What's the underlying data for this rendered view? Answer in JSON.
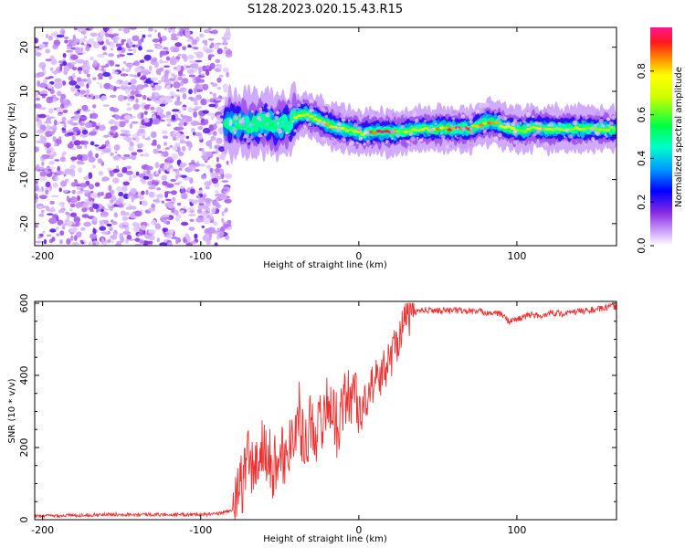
{
  "title": "S128.2023.020.15.43.R15",
  "chart_data": [
    {
      "type": "heatmap",
      "xlabel": "Height of straight line (km)",
      "ylabel": "Frequency (Hz)",
      "xlim": [
        -205,
        163
      ],
      "ylim": [
        -25,
        24.5
      ],
      "xticks": [
        -200,
        -100,
        0,
        100
      ],
      "yticks": [
        20,
        10,
        0,
        -10,
        -20
      ],
      "noise_region_x": [
        -205,
        -85
      ],
      "signal_ridge": {
        "x": [
          -82,
          -76,
          -70,
          -64,
          -58,
          -52,
          -46,
          -40,
          -34,
          -28,
          -22,
          -16,
          -10,
          -4,
          2,
          8,
          14,
          20,
          26,
          40,
          60,
          70,
          80,
          86,
          92,
          98,
          104,
          110,
          116,
          122,
          130,
          140,
          150,
          163
        ],
        "freq": [
          2.5,
          3.0,
          2.0,
          2.5,
          3.0,
          2.0,
          2.5,
          4.0,
          5.0,
          4.0,
          3.0,
          2.0,
          1.5,
          1.0,
          0.5,
          0.8,
          0.8,
          0.8,
          0.8,
          1.5,
          1.5,
          1.5,
          3.0,
          3.0,
          2.0,
          1.5,
          1.0,
          2.0,
          1.5,
          1.5,
          1.5,
          1.5,
          1.5,
          1.5
        ],
        "amplitude": [
          0.4,
          0.5,
          0.45,
          0.55,
          0.6,
          0.5,
          0.55,
          0.7,
          0.75,
          0.8,
          0.85,
          0.8,
          0.75,
          0.7,
          0.7,
          0.95,
          0.95,
          0.95,
          0.7,
          0.75,
          0.95,
          0.95,
          0.8,
          0.9,
          0.8,
          0.75,
          0.7,
          0.8,
          0.75,
          0.7,
          0.7,
          0.7,
          0.7,
          0.7
        ]
      },
      "colorbar": {
        "label": "Normalized spectral amplitude",
        "ticks": [
          "0.0",
          "0.2",
          "0.4",
          "0.6",
          "0.8"
        ],
        "range": [
          0,
          1
        ]
      }
    },
    {
      "type": "line",
      "xlabel": "Height of straight line (km)",
      "ylabel": "SNR (10 * v/v)",
      "xlim": [
        -205,
        163
      ],
      "ylim": [
        0,
        605
      ],
      "xticks": [
        -200,
        -100,
        0,
        100
      ],
      "yticks": [
        0,
        200,
        400,
        600
      ],
      "color": "#ee3030",
      "series": [
        {
          "name": "SNR",
          "x": [
            -205,
            -180,
            -150,
            -120,
            -90,
            -78,
            -74,
            -70,
            -66,
            -62,
            -58,
            -54,
            -50,
            -46,
            -42,
            -38,
            -34,
            -30,
            -26,
            -22,
            -18,
            -14,
            -10,
            -6,
            -2,
            2,
            6,
            10,
            14,
            18,
            22,
            26,
            30,
            35,
            40,
            50,
            60,
            70,
            80,
            90,
            95,
            100,
            110,
            115,
            120,
            130,
            140,
            150,
            160,
            163
          ],
          "y": [
            10,
            12,
            15,
            14,
            15,
            30,
            100,
            180,
            120,
            200,
            180,
            140,
            200,
            160,
            250,
            300,
            200,
            280,
            240,
            300,
            330,
            260,
            320,
            340,
            360,
            280,
            360,
            380,
            400,
            430,
            470,
            520,
            560,
            575,
            580,
            580,
            580,
            578,
            575,
            570,
            550,
            555,
            570,
            560,
            575,
            570,
            578,
            582,
            590,
            590
          ]
        }
      ]
    }
  ]
}
